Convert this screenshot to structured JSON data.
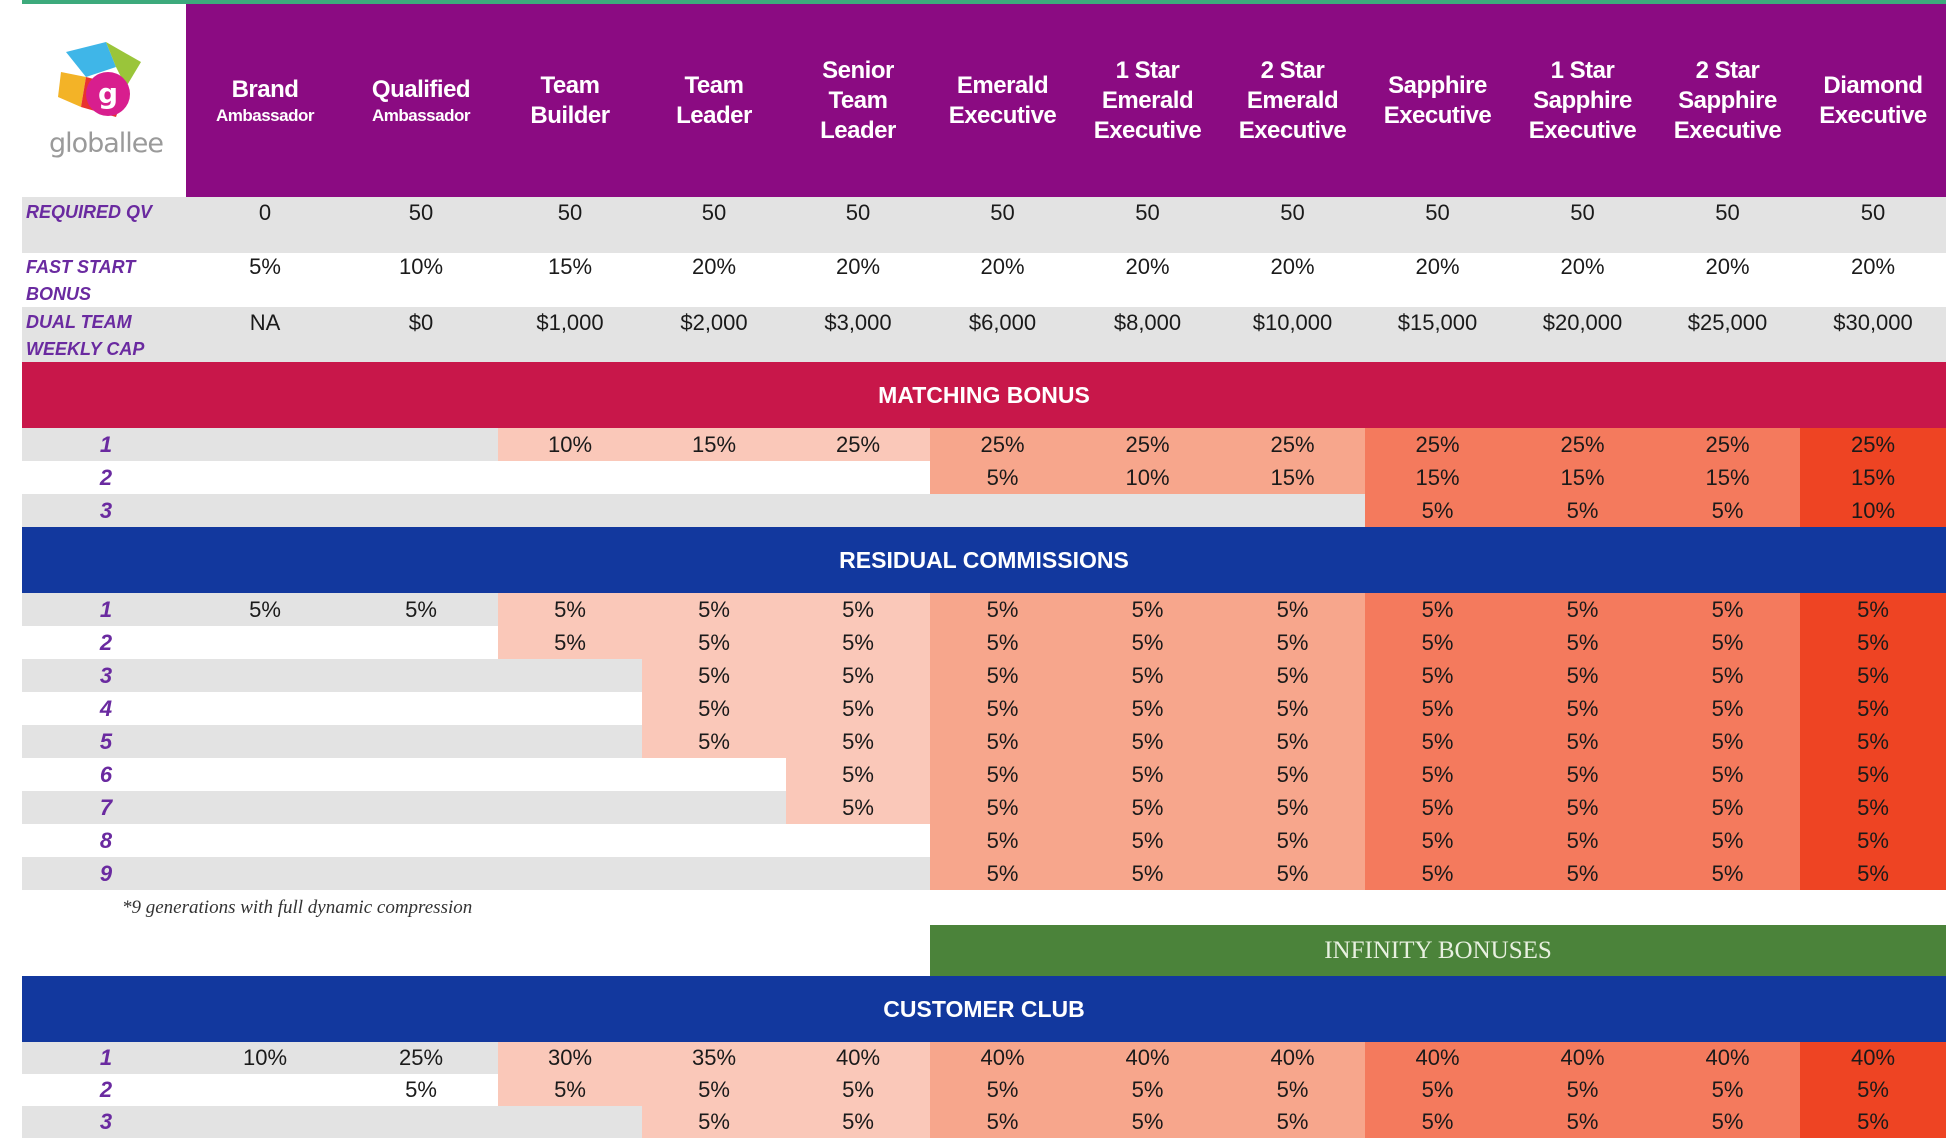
{
  "logo": {
    "text": "globallee"
  },
  "ranks": [
    {
      "line1": "Brand",
      "line2": "Ambassador",
      "sub": true
    },
    {
      "line1": "Qualified",
      "line2": "Ambassador",
      "sub": true
    },
    {
      "line1": "Team",
      "line2": "Builder"
    },
    {
      "line1": "Team",
      "line2": "Leader"
    },
    {
      "line1": "Senior",
      "line2": "Team",
      "line3": "Leader"
    },
    {
      "line1": "Emerald",
      "line2": "Executive"
    },
    {
      "line1": "1 Star",
      "line2": "Emerald",
      "line3": "Executive"
    },
    {
      "line1": "2 Star",
      "line2": "Emerald",
      "line3": "Executive"
    },
    {
      "line1": "Sapphire",
      "line2": "Executive"
    },
    {
      "line1": "1 Star",
      "line2": "Sapphire",
      "line3": "Executive"
    },
    {
      "line1": "2 Star",
      "line2": "Sapphire",
      "line3": "Executive"
    },
    {
      "line1": "Diamond",
      "line2": "Executive"
    }
  ],
  "required_qv": {
    "label": "REQUIRED QV",
    "values": [
      "0",
      "50",
      "50",
      "50",
      "50",
      "50",
      "50",
      "50",
      "50",
      "50",
      "50",
      "50"
    ]
  },
  "fast_start": {
    "label_1": "FAST START",
    "label_2": "BONUS",
    "values": [
      "5%",
      "10%",
      "15%",
      "20%",
      "20%",
      "20%",
      "20%",
      "20%",
      "20%",
      "20%",
      "20%",
      "20%"
    ]
  },
  "dual_team": {
    "label_1": "DUAL TEAM",
    "label_2": "WEEKLY CAP",
    "values": [
      "NA",
      "$0",
      "$1,000",
      "$2,000",
      "$3,000",
      "$6,000",
      "$8,000",
      "$10,000",
      "$15,000",
      "$20,000",
      "$25,000",
      "$30,000"
    ]
  },
  "matching": {
    "title": "MATCHING BONUS",
    "rows": [
      {
        "gen": "1",
        "values": [
          "",
          "",
          "10%",
          "15%",
          "25%",
          "25%",
          "25%",
          "25%",
          "25%",
          "25%",
          "25%",
          "25%"
        ]
      },
      {
        "gen": "2",
        "values": [
          "",
          "",
          "",
          "",
          "",
          "5%",
          "10%",
          "15%",
          "15%",
          "15%",
          "15%",
          "15%"
        ]
      },
      {
        "gen": "3",
        "values": [
          "",
          "",
          "",
          "",
          "",
          "",
          "",
          "",
          "5%",
          "5%",
          "5%",
          "10%"
        ]
      }
    ]
  },
  "residual": {
    "title": "RESIDUAL COMMISSIONS",
    "rows": [
      {
        "gen": "1",
        "values": [
          "5%",
          "5%",
          "5%",
          "5%",
          "5%",
          "5%",
          "5%",
          "5%",
          "5%",
          "5%",
          "5%",
          "5%"
        ]
      },
      {
        "gen": "2",
        "values": [
          "",
          "",
          "5%",
          "5%",
          "5%",
          "5%",
          "5%",
          "5%",
          "5%",
          "5%",
          "5%",
          "5%"
        ]
      },
      {
        "gen": "3",
        "values": [
          "",
          "",
          "",
          "5%",
          "5%",
          "5%",
          "5%",
          "5%",
          "5%",
          "5%",
          "5%",
          "5%"
        ]
      },
      {
        "gen": "4",
        "values": [
          "",
          "",
          "",
          "5%",
          "5%",
          "5%",
          "5%",
          "5%",
          "5%",
          "5%",
          "5%",
          "5%"
        ]
      },
      {
        "gen": "5",
        "values": [
          "",
          "",
          "",
          "5%",
          "5%",
          "5%",
          "5%",
          "5%",
          "5%",
          "5%",
          "5%",
          "5%"
        ]
      },
      {
        "gen": "6",
        "values": [
          "",
          "",
          "",
          "",
          "5%",
          "5%",
          "5%",
          "5%",
          "5%",
          "5%",
          "5%",
          "5%"
        ]
      },
      {
        "gen": "7",
        "values": [
          "",
          "",
          "",
          "",
          "5%",
          "5%",
          "5%",
          "5%",
          "5%",
          "5%",
          "5%",
          "5%"
        ]
      },
      {
        "gen": "8",
        "values": [
          "",
          "",
          "",
          "",
          "",
          "5%",
          "5%",
          "5%",
          "5%",
          "5%",
          "5%",
          "5%"
        ]
      },
      {
        "gen": "9",
        "values": [
          "",
          "",
          "",
          "",
          "",
          "5%",
          "5%",
          "5%",
          "5%",
          "5%",
          "5%",
          "5%"
        ]
      }
    ],
    "note": "*9 generations with full dynamic compression"
  },
  "infinity": {
    "title": "INFINITY BONUSES"
  },
  "customer_club": {
    "title": "CUSTOMER CLUB",
    "rows": [
      {
        "gen": "1",
        "values": [
          "10%",
          "25%",
          "30%",
          "35%",
          "40%",
          "40%",
          "40%",
          "40%",
          "40%",
          "40%",
          "40%",
          "40%"
        ]
      },
      {
        "gen": "2",
        "values": [
          "",
          "5%",
          "5%",
          "5%",
          "5%",
          "5%",
          "5%",
          "5%",
          "5%",
          "5%",
          "5%",
          "5%"
        ]
      },
      {
        "gen": "3",
        "values": [
          "",
          "",
          "",
          "5%",
          "5%",
          "5%",
          "5%",
          "5%",
          "5%",
          "5%",
          "5%",
          "5%"
        ]
      }
    ]
  },
  "colors": {
    "header": "#8b0b82",
    "matching_band": "#c8174a",
    "blue_band": "#12389e",
    "infinity_band": "#4b833a",
    "tier_team": "#fac8b9",
    "tier_emerald": "#f7a68c",
    "tier_sapphire": "#f47a5d",
    "tier_diamond": "#ee4423"
  }
}
